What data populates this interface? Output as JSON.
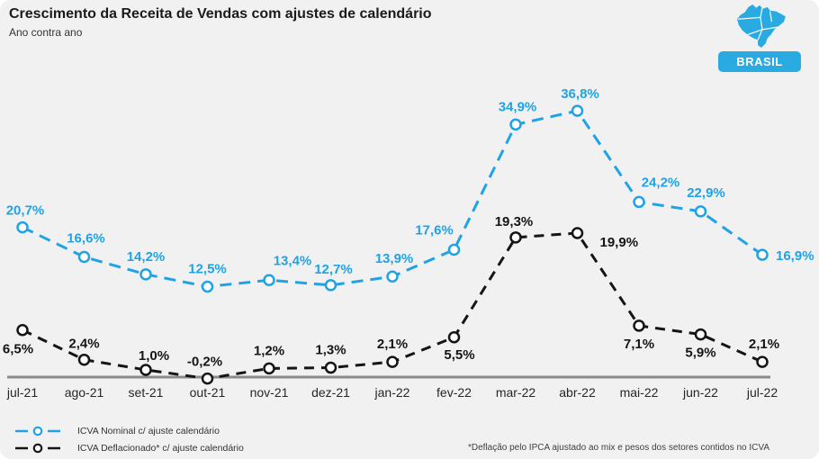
{
  "header": {
    "title": "Crescimento da Receita de Vendas com ajustes de calendário",
    "subtitle": "Ano contra ano",
    "region_label": "BRASIL"
  },
  "chart_data": {
    "type": "line",
    "title": "Crescimento da Receita de Vendas com ajustes de calendário",
    "subtitle": "Ano contra ano",
    "categories": [
      "jul-21",
      "ago-21",
      "set-21",
      "out-21",
      "nov-21",
      "dez-21",
      "jan-22",
      "fev-22",
      "mar-22",
      "abr-22",
      "mai-22",
      "jun-22",
      "jul-22"
    ],
    "xlabel": "",
    "ylabel": "",
    "ylim": [
      -2,
      42
    ],
    "grid": false,
    "baseline_value": 0,
    "legend_position": "bottom-left",
    "line_style": "dashed",
    "marker": "open-circle",
    "series": [
      {
        "id": "icva-nominal",
        "name": "ICVA Nominal c/ ajuste calendário",
        "color": "#1FA3E6",
        "dash": "13 8",
        "values": [
          20.7,
          16.6,
          14.2,
          12.5,
          13.4,
          12.7,
          13.9,
          17.6,
          34.9,
          36.8,
          24.2,
          22.9,
          16.9
        ],
        "labels": [
          "20,7%",
          "16,6%",
          "14,2%",
          "12,5%",
          "13,4%",
          "12,7%",
          "13,9%",
          "17,6%",
          "34,9%",
          "36,8%",
          "24,2%",
          "22,9%",
          "16,9%"
        ],
        "label_offsets": [
          [
            3,
            -14
          ],
          [
            2,
            -16
          ],
          [
            0,
            -15
          ],
          [
            0,
            -15
          ],
          [
            26,
            -17
          ],
          [
            3,
            -13
          ],
          [
            2,
            -15
          ],
          [
            -22,
            -17
          ],
          [
            2,
            -15
          ],
          [
            3,
            -14
          ],
          [
            24,
            -17
          ],
          [
            6,
            -16
          ],
          [
            15,
            6,
            "start"
          ]
        ]
      },
      {
        "id": "icva-deflacionado",
        "name": "ICVA Deflacionado* c/ ajuste calendário",
        "color": "#151515",
        "dash": "11 8",
        "values": [
          6.5,
          2.4,
          1.0,
          -0.2,
          1.2,
          1.3,
          2.1,
          5.5,
          19.3,
          19.9,
          7.1,
          5.9,
          2.1
        ],
        "labels": [
          "6,5%",
          "2,4%",
          "1,0%",
          "-0,2%",
          "1,2%",
          "1,3%",
          "2,1%",
          "5,5%",
          "19,3%",
          "19,9%",
          "7,1%",
          "5,9%",
          "2,1%"
        ],
        "label_offsets": [
          [
            -5,
            26
          ],
          [
            0,
            -13
          ],
          [
            9,
            -11
          ],
          [
            -3,
            -14
          ],
          [
            0,
            -15
          ],
          [
            0,
            -15
          ],
          [
            0,
            -15
          ],
          [
            6,
            24
          ],
          [
            -2,
            -13
          ],
          [
            25,
            15,
            "start"
          ],
          [
            0,
            25
          ],
          [
            0,
            25
          ],
          [
            2,
            -15
          ]
        ]
      }
    ]
  },
  "footnote": "*Deflação pelo IPCA ajustado ao mix e pesos dos setores contidos no ICVA"
}
